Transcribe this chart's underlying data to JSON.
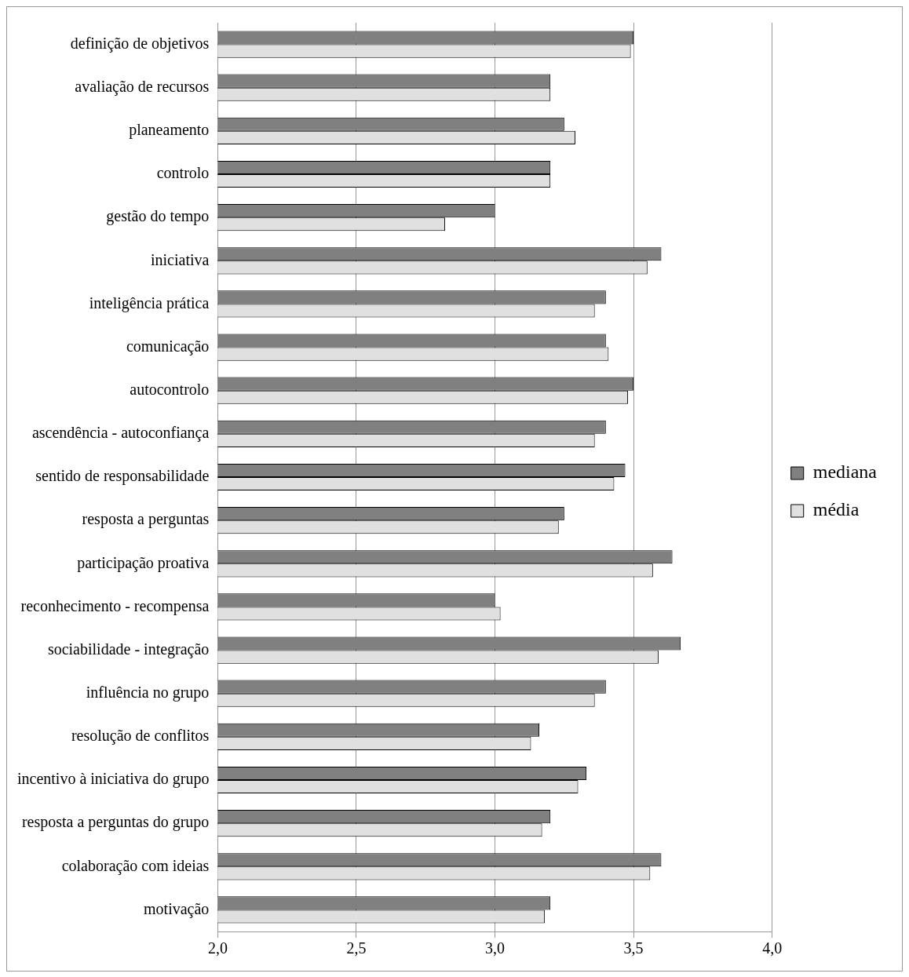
{
  "chart_data": {
    "type": "bar",
    "orientation": "horizontal",
    "categories": [
      "definição de objetivos",
      "avaliação de recursos",
      "planeamento",
      "controlo",
      "gestão do tempo",
      "iniciativa",
      "inteligência prática",
      "comunicação",
      "autocontrolo",
      "ascendência - autoconfiança",
      "sentido de responsabilidade",
      "resposta a perguntas",
      "participação proativa",
      "reconhecimento - recompensa",
      "sociabilidade - integração",
      "influência no grupo",
      "resolução de conflitos",
      "incentivo à iniciativa do grupo",
      "resposta a perguntas do grupo",
      "colaboração com ideias",
      "motivação"
    ],
    "series": [
      {
        "name": "mediana",
        "color": "#808080",
        "values": [
          3.5,
          3.2,
          3.25,
          3.2,
          3.0,
          3.6,
          3.4,
          3.4,
          3.5,
          3.4,
          3.47,
          3.25,
          3.64,
          3.0,
          3.67,
          3.4,
          3.16,
          3.33,
          3.2,
          3.6,
          3.2
        ]
      },
      {
        "name": "média",
        "color": "#e0e0e0",
        "values": [
          3.49,
          3.2,
          3.29,
          3.2,
          2.82,
          3.55,
          3.36,
          3.41,
          3.48,
          3.36,
          3.43,
          3.23,
          3.57,
          3.02,
          3.59,
          3.36,
          3.13,
          3.3,
          3.17,
          3.56,
          3.18
        ]
      }
    ],
    "xlim": [
      2.0,
      4.0
    ],
    "xticks": [
      {
        "value": 2.0,
        "label": "2,0"
      },
      {
        "value": 2.5,
        "label": "2,5"
      },
      {
        "value": 3.0,
        "label": "3,0"
      },
      {
        "value": 3.5,
        "label": "3,5"
      },
      {
        "value": 4.0,
        "label": "4,0"
      }
    ],
    "grid": "x",
    "legend": "right"
  }
}
